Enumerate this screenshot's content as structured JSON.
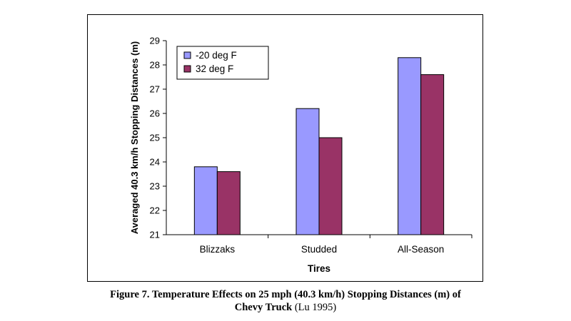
{
  "chart_data": {
    "type": "bar",
    "categories": [
      "Blizzaks",
      "Studded",
      "All-Season"
    ],
    "series": [
      {
        "name": "-20 deg F",
        "values": [
          23.8,
          26.2,
          28.3
        ],
        "color": "#9999ff"
      },
      {
        "name": "32 deg F",
        "values": [
          23.6,
          25.0,
          27.6
        ],
        "color": "#993366"
      }
    ],
    "xlabel": "Tires",
    "ylabel": "Averaged 40.3 km/h Stopping Distances (m)",
    "ylim": [
      21,
      29
    ],
    "yticks": [
      21,
      22,
      23,
      24,
      25,
      26,
      27,
      28,
      29
    ],
    "grid": false,
    "legend": "top-left"
  },
  "caption": {
    "line1": "Figure 7.  Temperature Effects on 25 mph (40.3 km/h) Stopping Distances (m) of",
    "line2_bold": "Chevy Truck",
    "line2_rest": " (Lu 1995)"
  }
}
